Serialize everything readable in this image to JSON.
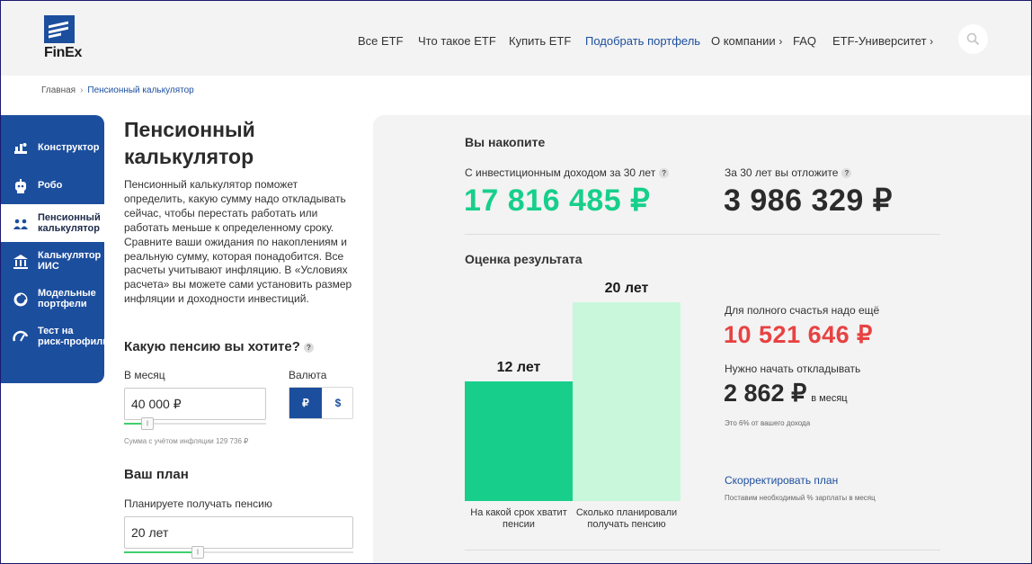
{
  "header": {
    "logo_text": "FinEx",
    "nav": [
      {
        "label": "Все ETF",
        "x": 0
      },
      {
        "label": "Что такое ETF"
      },
      {
        "label": "Купить ETF"
      },
      {
        "label": "Подобрать портфель",
        "active": true
      },
      {
        "label": "О компании",
        "chevron": "›"
      },
      {
        "label": "FAQ"
      },
      {
        "label": "ETF-Университет",
        "chevron": "›"
      }
    ]
  },
  "breadcrumb": {
    "home": "Главная",
    "separator": "›",
    "current": "Пенсионный калькулятор"
  },
  "sidebar": {
    "items": [
      {
        "label": "Конструктор",
        "icon": "constructor-icon"
      },
      {
        "label": "Робо",
        "icon": "robot-icon"
      },
      {
        "label": "Пенсионный\nкалькулятор",
        "icon": "pension-icon",
        "active": true
      },
      {
        "label": "Калькулятор\nИИС",
        "icon": "bank-icon"
      },
      {
        "label": "Модельные\nпортфели",
        "icon": "portfolio-icon"
      },
      {
        "label": "Тест на\nриск-профиль",
        "icon": "gauge-icon"
      }
    ]
  },
  "calculator": {
    "title": "Пенсионный калькулятор",
    "description": "Пенсионный калькулятор поможет определить, какую сумму надо откладывать сейчас, чтобы перестать работать или работать меньше к определенному сроку. Сравните ваши ожидания по накоплениям и реальную сумму, которая понадобится. Все расчеты учитывают инфляцию. В «Условиях расчета» вы можете сами установить размер инфляции и доходности инвестиций.",
    "question": "Какую пенсию вы хотите?",
    "help": "?",
    "per_month_label": "В месяц",
    "per_month_value": "40 000 ₽",
    "currency_label": "Валюта",
    "currency_rub": "₽",
    "currency_usd": "$",
    "inflation_note": "Сумма с учётом инфляции 129 736 ₽",
    "plan_title": "Ваш план",
    "pension_label": "Планируете получать пенсию",
    "pension_value": "20 лет",
    "slider_knob": "||",
    "pension_slider_level": 0.31,
    "monthly_slider_level": 0.13
  },
  "results": {
    "title": "Вы накопите",
    "invest_label": "С инвестиционным доходом за 30 лет",
    "invest_value": "17 816 485 ₽",
    "save_label": "За 30 лет вы отложите",
    "save_value": "3 986 329 ₽",
    "estimate_title": "Оценка результата",
    "need_label": "Для полного счастья надо ещё",
    "need_value": "10 521 646 ₽",
    "start_label": "Нужно начать откладывать",
    "start_value": "2 862 ₽",
    "start_unit": "в месяц",
    "income_note": "Это 6% от вашего дохода",
    "adjust_link": "Скорректировать план",
    "adjust_note": "Поставим необходимый % зарплаты в месяц",
    "colors": {
      "green": "#17cf8b",
      "red": "#e84242",
      "bar_light": "#c9f7dc",
      "bar_dark": "#17cf8b"
    }
  },
  "chart_data": {
    "type": "bar",
    "categories": [
      "На какой срок хватит пенсии",
      "Сколько планировали получать пенсию"
    ],
    "values": [
      12,
      20
    ],
    "value_labels": [
      "12 лет",
      "20 лет"
    ],
    "ylim": [
      0,
      20
    ]
  }
}
